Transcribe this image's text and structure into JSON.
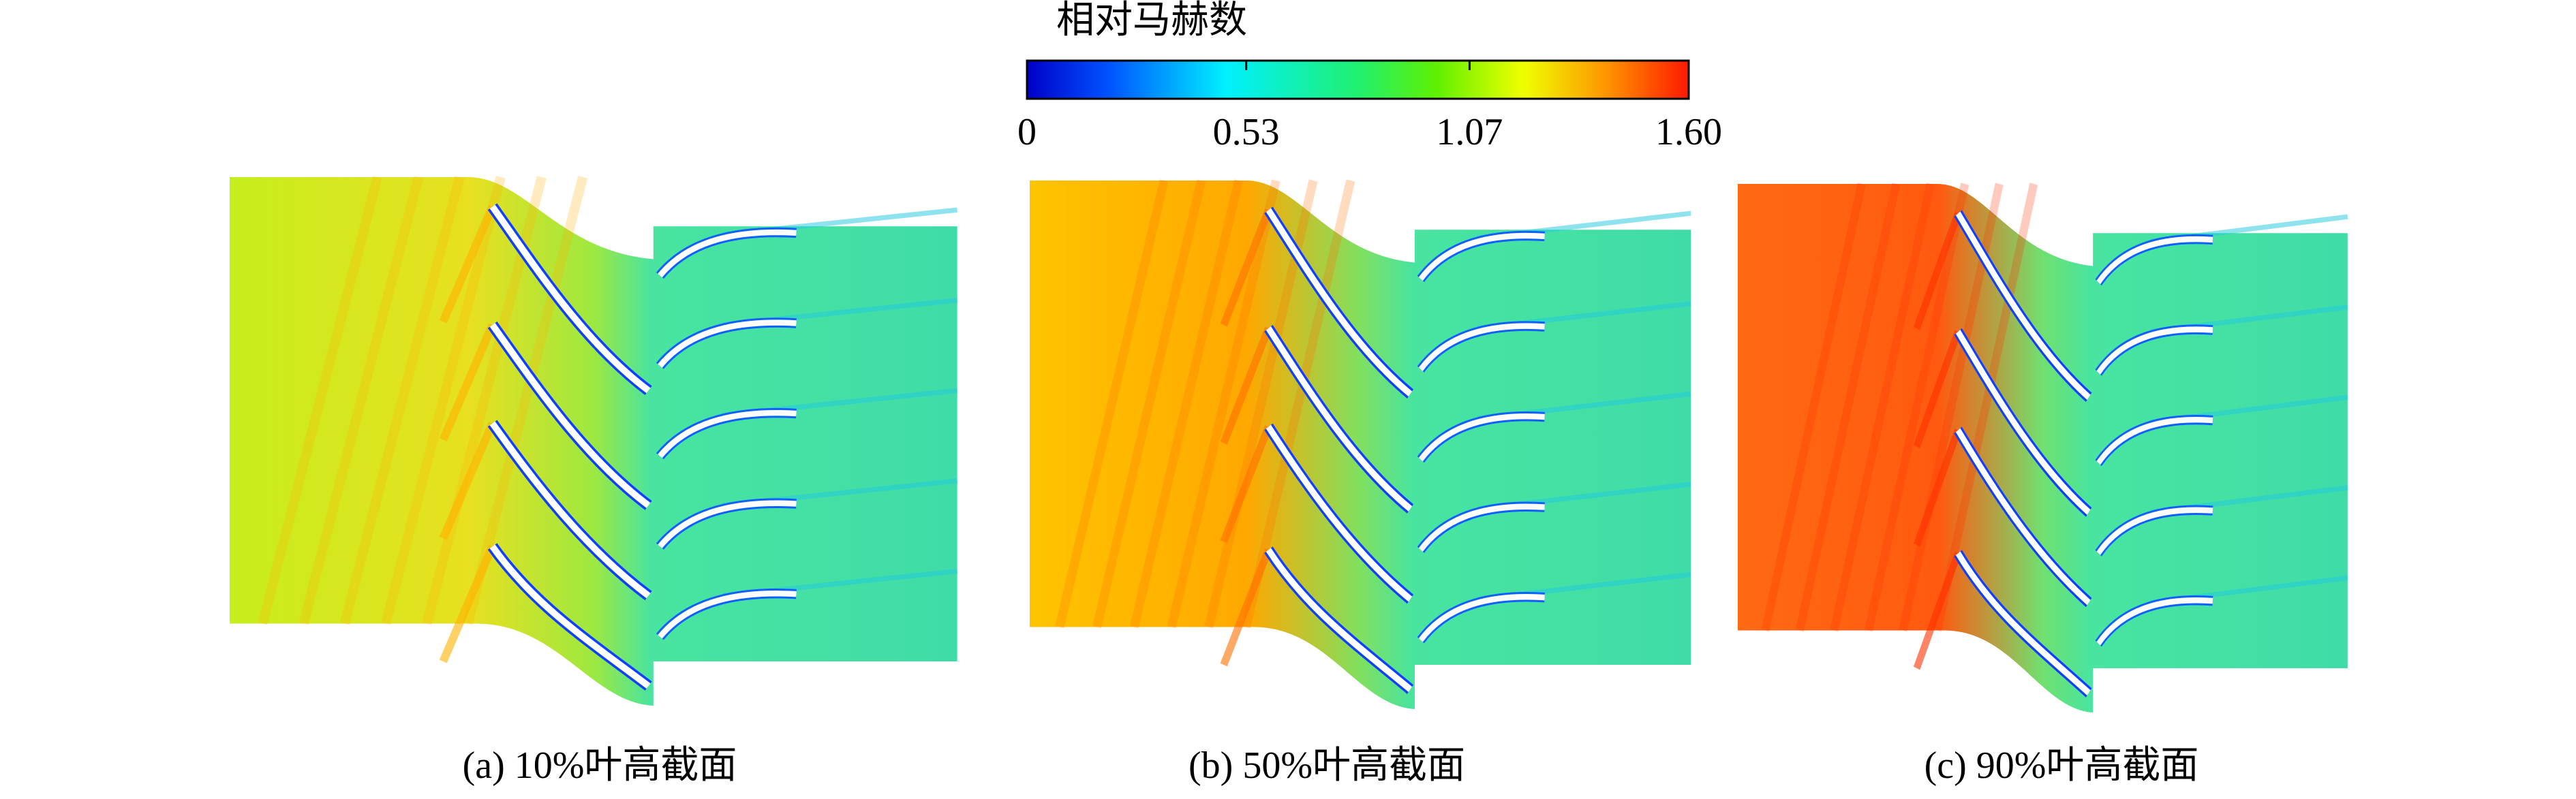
{
  "colorbar": {
    "title": "相对马赫数",
    "range": [
      0,
      1.6
    ],
    "ticks": [
      0,
      0.53,
      1.07,
      {
        "value": 1.6,
        "label": "1.60"
      }
    ]
  },
  "panels": [
    {
      "caption": "(a) 10%叶高截面"
    },
    {
      "caption": "(b) 50%叶高截面"
    },
    {
      "caption": "(c) 90%叶高截面"
    }
  ]
}
